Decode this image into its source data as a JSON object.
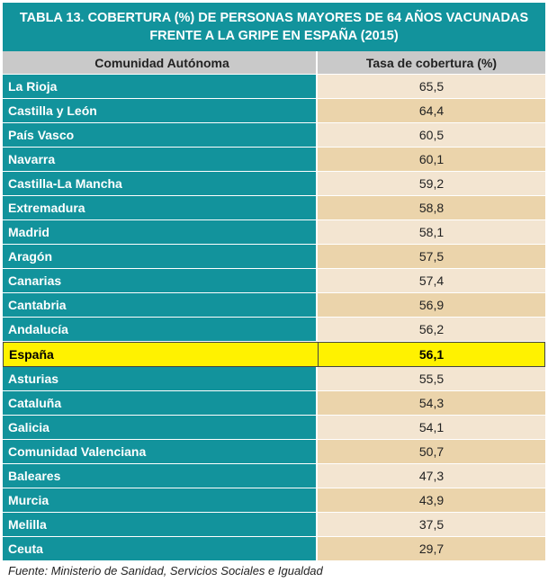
{
  "chart_data": {
    "type": "table",
    "title_lines": [
      "TABLA 13. COBERTURA (%) DE PERSONAS MAYORES DE 64 AÑOS VACUNADAS",
      "FRENTE A LA GRIPE EN ESPAÑA (2015)"
    ],
    "columns": [
      "Comunidad Autónoma",
      "Tasa de cobertura (%)"
    ],
    "rows": [
      {
        "region": "La Rioja",
        "value": "65,5"
      },
      {
        "region": "Castilla y León",
        "value": "64,4"
      },
      {
        "region": "País Vasco",
        "value": "60,5"
      },
      {
        "region": "Navarra",
        "value": "60,1"
      },
      {
        "region": "Castilla-La Mancha",
        "value": "59,2"
      },
      {
        "region": "Extremadura",
        "value": "58,8"
      },
      {
        "region": "Madrid",
        "value": "58,1"
      },
      {
        "region": "Aragón",
        "value": "57,5"
      },
      {
        "region": "Canarias",
        "value": "57,4"
      },
      {
        "region": "Cantabria",
        "value": "56,9"
      },
      {
        "region": "Andalucía",
        "value": "56,2"
      },
      {
        "region": "España",
        "value": "56,1",
        "highlight": true
      },
      {
        "region": "Asturias",
        "value": "55,5"
      },
      {
        "region": "Cataluña",
        "value": "54,3"
      },
      {
        "region": "Galicia",
        "value": "54,1"
      },
      {
        "region": "Comunidad Valenciana",
        "value": "50,7"
      },
      {
        "region": "Baleares",
        "value": "47,3"
      },
      {
        "region": "Murcia",
        "value": "43,9"
      },
      {
        "region": "Melilla",
        "value": "37,5"
      },
      {
        "region": "Ceuta",
        "value": "29,7"
      }
    ],
    "source": "Fuente: Ministerio de Sanidad, Servicios Sociales e Igualdad"
  },
  "colors": {
    "header_teal": "#12939c",
    "column_header_gray": "#c9c9c9",
    "row_light": "#f3e5d1",
    "row_tan": "#ebd4ab",
    "highlight_yellow": "#fff200"
  }
}
